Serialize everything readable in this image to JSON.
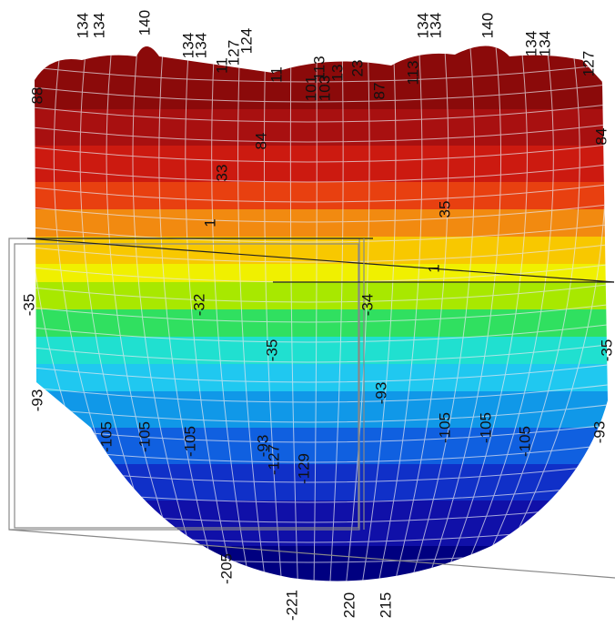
{
  "labels": [
    "134",
    "134",
    "140",
    "134",
    "134",
    "127",
    "124",
    "11",
    "11",
    "113",
    "101",
    "103",
    "13",
    "23",
    "113",
    "87",
    "134",
    "134",
    "140",
    "134",
    "134",
    "127",
    "88",
    "84",
    "33",
    "1",
    "35",
    "1",
    "84",
    "-35",
    "-32",
    "-34",
    "-35",
    "-35",
    "-93",
    "-93",
    "-93",
    "-105",
    "-105",
    "-105",
    "-105",
    "-105",
    "-105",
    "-93",
    "-127",
    "-129",
    "-205",
    "-221",
    "220",
    "215"
  ]
}
